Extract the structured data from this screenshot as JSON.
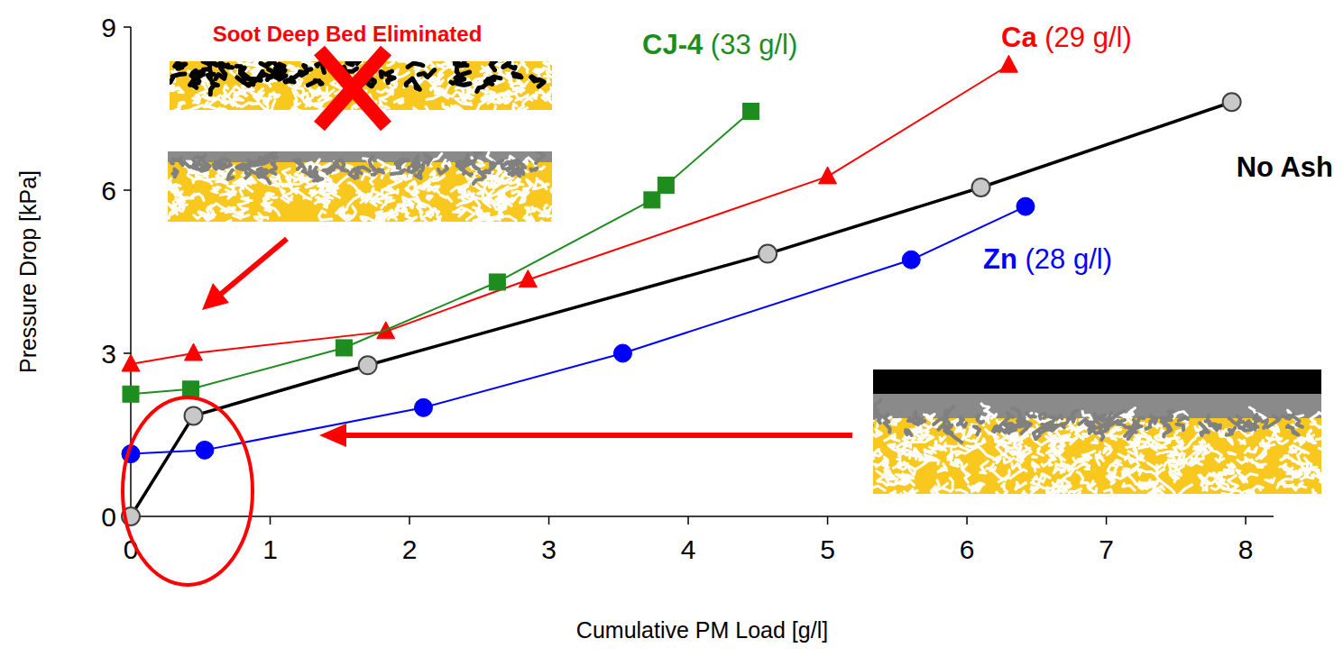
{
  "chart_data": {
    "type": "line",
    "x_label": "Cumulative PM Load [g/l]",
    "y_label": "Pressure Drop [kPa]",
    "annotations": [
      "Soot Deep Bed Eliminated"
    ],
    "xlim": [
      0,
      8.2
    ],
    "ylim": [
      0,
      9
    ],
    "xticks": [
      0,
      1,
      2,
      3,
      4,
      5,
      6,
      7,
      8
    ],
    "yticks": [
      0,
      3,
      6,
      9
    ],
    "series": [
      {
        "name": "No Ash",
        "color": "#000000",
        "colors": [
          "#c8c8c8",
          "#c8c8c8",
          "#c8c8c8",
          "#c8c8c8",
          "#c8c8c8",
          "#c8c8c8"
        ],
        "marker": "circle",
        "x": [
          0,
          0.45,
          1.7,
          4.57,
          6.1,
          7.9
        ],
        "values": [
          0,
          1.85,
          2.78,
          4.83,
          6.05,
          7.62
        ]
      },
      {
        "name": "Ca",
        "note": "(29 g/l)",
        "color": "#ff0000",
        "marker": "triangle",
        "x": [
          0,
          0.45,
          1.83,
          2.85,
          5.0,
          6.3
        ],
        "values": [
          2.8,
          3.0,
          3.4,
          4.35,
          6.25,
          8.3
        ]
      },
      {
        "name": "CJ-4",
        "note": "(33 g/l)",
        "color": "#1e8c1e",
        "marker": "square",
        "x": [
          0,
          0.43,
          1.53,
          2.63,
          3.74,
          3.84,
          4.45
        ],
        "values": [
          2.25,
          2.34,
          3.1,
          4.31,
          5.82,
          6.09,
          7.45
        ]
      },
      {
        "name": "Zn",
        "note": "(28 g/l)",
        "color": "#0000ff",
        "marker": "circle",
        "x": [
          0,
          0.53,
          2.1,
          3.53,
          5.6,
          6.42
        ],
        "values": [
          1.15,
          1.22,
          2.0,
          3.0,
          4.72,
          5.7
        ]
      }
    ]
  }
}
